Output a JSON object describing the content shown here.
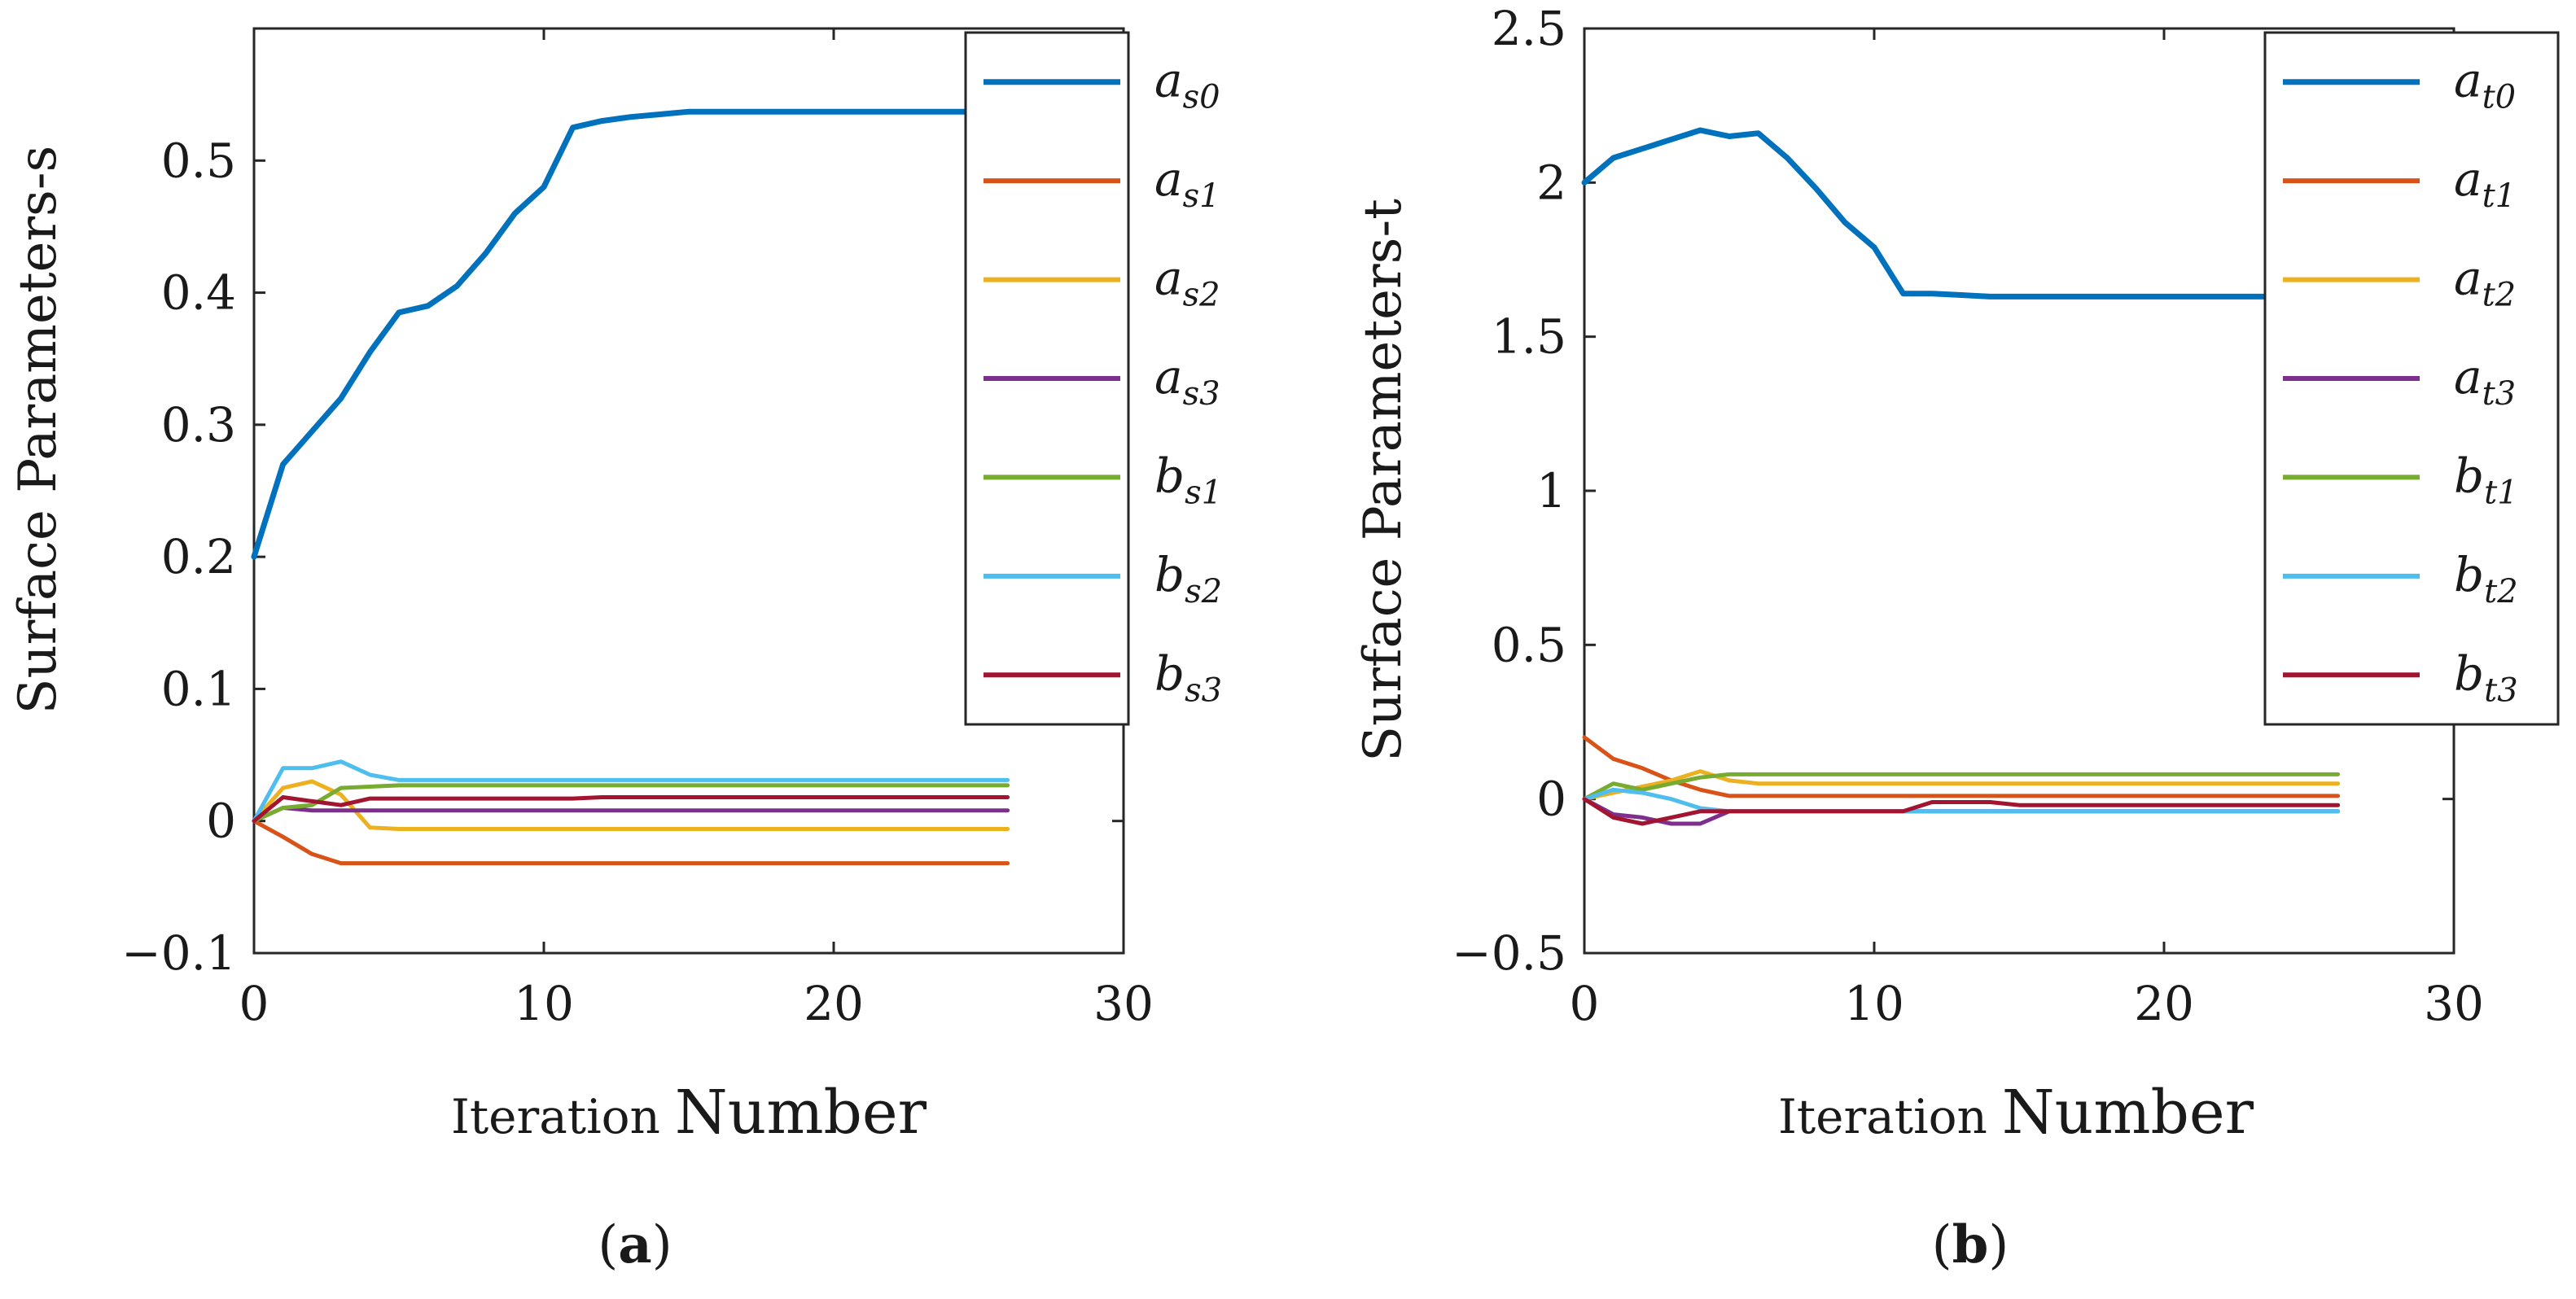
{
  "chart_data": [
    {
      "type": "line",
      "panel_label_open": "(",
      "panel_label_letter": "a",
      "panel_label_close": ")",
      "xlabel_part1": "Iteration",
      "xlabel_part2": "Number",
      "ylabel": "Surface Parameters-s",
      "xlim": [
        0,
        30
      ],
      "ylim": [
        -0.1,
        0.6
      ],
      "xticks": [
        0,
        10,
        20,
        30
      ],
      "xtick_labels": [
        "0",
        "10",
        "20",
        "30"
      ],
      "yticks": [
        -0.1,
        0,
        0.1,
        0.2,
        0.3,
        0.4,
        0.5
      ],
      "ytick_labels": [
        "−0.1",
        "0",
        "0.1",
        "0.2",
        "0.3",
        "0.4",
        "0.5"
      ],
      "legend_position": "top-right",
      "x": [
        0,
        1,
        2,
        3,
        4,
        5,
        6,
        7,
        8,
        9,
        10,
        11,
        12,
        13,
        14,
        15,
        16,
        17,
        18,
        19,
        20,
        21,
        22,
        23,
        24,
        25,
        26
      ],
      "series": [
        {
          "name": "as0",
          "base": "a",
          "sub": "s0",
          "color": "#0072BD",
          "values": [
            0.2,
            0.27,
            0.295,
            0.32,
            0.355,
            0.385,
            0.39,
            0.405,
            0.43,
            0.46,
            0.48,
            0.525,
            0.53,
            0.533,
            0.535,
            0.537,
            0.537,
            0.537,
            0.537,
            0.537,
            0.537,
            0.537,
            0.537,
            0.537,
            0.537,
            0.537,
            0.537
          ]
        },
        {
          "name": "as1",
          "base": "a",
          "sub": "s1",
          "color": "#D95319",
          "values": [
            0,
            -0.012,
            -0.025,
            -0.032,
            -0.032,
            -0.032,
            -0.032,
            -0.032,
            -0.032,
            -0.032,
            -0.032,
            -0.032,
            -0.032,
            -0.032,
            -0.032,
            -0.032,
            -0.032,
            -0.032,
            -0.032,
            -0.032,
            -0.032,
            -0.032,
            -0.032,
            -0.032,
            -0.032,
            -0.032,
            -0.032
          ]
        },
        {
          "name": "as2",
          "base": "a",
          "sub": "s2",
          "color": "#EDB120",
          "values": [
            0,
            0.025,
            0.03,
            0.02,
            -0.005,
            -0.006,
            -0.006,
            -0.006,
            -0.006,
            -0.006,
            -0.006,
            -0.006,
            -0.006,
            -0.006,
            -0.006,
            -0.006,
            -0.006,
            -0.006,
            -0.006,
            -0.006,
            -0.006,
            -0.006,
            -0.006,
            -0.006,
            -0.006,
            -0.006,
            -0.006
          ]
        },
        {
          "name": "as3",
          "base": "a",
          "sub": "s3",
          "color": "#7E2F8E",
          "values": [
            0,
            0.01,
            0.008,
            0.008,
            0.008,
            0.008,
            0.008,
            0.008,
            0.008,
            0.008,
            0.008,
            0.008,
            0.008,
            0.008,
            0.008,
            0.008,
            0.008,
            0.008,
            0.008,
            0.008,
            0.008,
            0.008,
            0.008,
            0.008,
            0.008,
            0.008,
            0.008
          ]
        },
        {
          "name": "bs1",
          "base": "b",
          "sub": "s1",
          "color": "#77AC30",
          "values": [
            0,
            0.01,
            0.012,
            0.025,
            0.026,
            0.027,
            0.027,
            0.027,
            0.027,
            0.027,
            0.027,
            0.027,
            0.027,
            0.027,
            0.027,
            0.027,
            0.027,
            0.027,
            0.027,
            0.027,
            0.027,
            0.027,
            0.027,
            0.027,
            0.027,
            0.027,
            0.027
          ]
        },
        {
          "name": "bs2",
          "base": "b",
          "sub": "s2",
          "color": "#4DBEEE",
          "values": [
            0,
            0.04,
            0.04,
            0.045,
            0.035,
            0.031,
            0.031,
            0.031,
            0.031,
            0.031,
            0.031,
            0.031,
            0.031,
            0.031,
            0.031,
            0.031,
            0.031,
            0.031,
            0.031,
            0.031,
            0.031,
            0.031,
            0.031,
            0.031,
            0.031,
            0.031,
            0.031
          ]
        },
        {
          "name": "bs3",
          "base": "b",
          "sub": "s3",
          "color": "#A2142F",
          "values": [
            0,
            0.018,
            0.015,
            0.012,
            0.017,
            0.017,
            0.017,
            0.017,
            0.017,
            0.017,
            0.017,
            0.017,
            0.018,
            0.018,
            0.018,
            0.018,
            0.018,
            0.018,
            0.018,
            0.018,
            0.018,
            0.018,
            0.018,
            0.018,
            0.018,
            0.018,
            0.018
          ]
        }
      ]
    },
    {
      "type": "line",
      "panel_label_open": "(",
      "panel_label_letter": "b",
      "panel_label_close": ")",
      "xlabel_part1": "Iteration",
      "xlabel_part2": "Number",
      "ylabel": "Surface Parameters-t",
      "xlim": [
        0,
        30
      ],
      "ylim": [
        -0.5,
        2.5
      ],
      "xticks": [
        0,
        10,
        20,
        30
      ],
      "xtick_labels": [
        "0",
        "10",
        "20",
        "30"
      ],
      "yticks": [
        -0.5,
        0,
        0.5,
        1,
        1.5,
        2,
        2.5
      ],
      "ytick_labels": [
        "−0.5",
        "0",
        "0.5",
        "1",
        "1.5",
        "2",
        "2.5"
      ],
      "legend_position": "top-right",
      "x": [
        0,
        1,
        2,
        3,
        4,
        5,
        6,
        7,
        8,
        9,
        10,
        11,
        12,
        13,
        14,
        15,
        16,
        17,
        18,
        19,
        20,
        21,
        22,
        23,
        24,
        25,
        26
      ],
      "series": [
        {
          "name": "at0",
          "base": "a",
          "sub": "t0",
          "color": "#0072BD",
          "values": [
            2.0,
            2.08,
            2.11,
            2.14,
            2.17,
            2.15,
            2.16,
            2.08,
            1.98,
            1.87,
            1.79,
            1.64,
            1.64,
            1.635,
            1.63,
            1.63,
            1.63,
            1.63,
            1.63,
            1.63,
            1.63,
            1.63,
            1.63,
            1.63,
            1.63,
            1.63,
            1.63
          ]
        },
        {
          "name": "at1",
          "base": "a",
          "sub": "t1",
          "color": "#D95319",
          "values": [
            0.2,
            0.13,
            0.1,
            0.06,
            0.03,
            0.01,
            0.01,
            0.01,
            0.01,
            0.01,
            0.01,
            0.01,
            0.01,
            0.01,
            0.01,
            0.01,
            0.01,
            0.01,
            0.01,
            0.01,
            0.01,
            0.01,
            0.01,
            0.01,
            0.01,
            0.01,
            0.01
          ]
        },
        {
          "name": "at2",
          "base": "a",
          "sub": "t2",
          "color": "#EDB120",
          "values": [
            0,
            0.02,
            0.04,
            0.06,
            0.09,
            0.06,
            0.05,
            0.05,
            0.05,
            0.05,
            0.05,
            0.05,
            0.05,
            0.05,
            0.05,
            0.05,
            0.05,
            0.05,
            0.05,
            0.05,
            0.05,
            0.05,
            0.05,
            0.05,
            0.05,
            0.05,
            0.05
          ]
        },
        {
          "name": "at3",
          "base": "a",
          "sub": "t3",
          "color": "#7E2F8E",
          "values": [
            0,
            -0.05,
            -0.06,
            -0.08,
            -0.08,
            -0.04,
            -0.04,
            -0.04,
            -0.04,
            -0.04,
            -0.04,
            -0.04,
            -0.04,
            -0.04,
            -0.04,
            -0.04,
            -0.04,
            -0.04,
            -0.04,
            -0.04,
            -0.04,
            -0.04,
            -0.04,
            -0.04,
            -0.04,
            -0.04,
            -0.04
          ]
        },
        {
          "name": "bt1",
          "base": "b",
          "sub": "t1",
          "color": "#77AC30",
          "values": [
            0,
            0.05,
            0.03,
            0.05,
            0.07,
            0.08,
            0.08,
            0.08,
            0.08,
            0.08,
            0.08,
            0.08,
            0.08,
            0.08,
            0.08,
            0.08,
            0.08,
            0.08,
            0.08,
            0.08,
            0.08,
            0.08,
            0.08,
            0.08,
            0.08,
            0.08,
            0.08
          ]
        },
        {
          "name": "bt2",
          "base": "b",
          "sub": "t2",
          "color": "#4DBEEE",
          "values": [
            0,
            0.03,
            0.02,
            0,
            -0.03,
            -0.04,
            -0.04,
            -0.04,
            -0.04,
            -0.04,
            -0.04,
            -0.04,
            -0.04,
            -0.04,
            -0.04,
            -0.04,
            -0.04,
            -0.04,
            -0.04,
            -0.04,
            -0.04,
            -0.04,
            -0.04,
            -0.04,
            -0.04,
            -0.04,
            -0.04
          ]
        },
        {
          "name": "bt3",
          "base": "b",
          "sub": "t3",
          "color": "#A2142F",
          "values": [
            0,
            -0.06,
            -0.08,
            -0.06,
            -0.04,
            -0.04,
            -0.04,
            -0.04,
            -0.04,
            -0.04,
            -0.04,
            -0.04,
            -0.01,
            -0.01,
            -0.01,
            -0.02,
            -0.02,
            -0.02,
            -0.02,
            -0.02,
            -0.02,
            -0.02,
            -0.02,
            -0.02,
            -0.02,
            -0.02,
            -0.02
          ]
        }
      ]
    }
  ]
}
